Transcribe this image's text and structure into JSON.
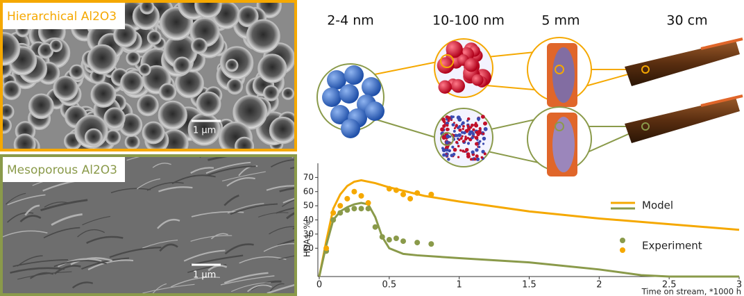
{
  "images": [
    {
      "label": "Hierarchical Al2O3",
      "scale_bar": "1 μm"
    },
    {
      "label": "Mesoporous Al2O3",
      "scale_bar": "1 μm"
    }
  ],
  "diagram": {
    "scales": [
      "2-4 nm",
      "10-100 nm",
      "5 mm",
      "30 cm"
    ]
  },
  "chart_data": {
    "type": "line",
    "y_label": "HDAs, %",
    "x_label": "Time on stream, *1000 h",
    "xlim": [
      0,
      3
    ],
    "xticks": [
      0,
      0.5,
      1,
      1.5,
      2,
      2.5,
      3
    ],
    "ylim": [
      0,
      80
    ],
    "yticks": [
      20,
      30,
      40,
      50,
      60,
      70
    ],
    "series": [
      {
        "name": "Model",
        "color": "#f5a800",
        "style": "line",
        "x": [
          0,
          0.05,
          0.1,
          0.15,
          0.2,
          0.25,
          0.3,
          0.4,
          0.5,
          0.75,
          1,
          1.5,
          2,
          2.5,
          3
        ],
        "values": [
          0,
          25,
          48,
          58,
          64,
          67,
          68,
          66,
          63,
          57,
          53,
          46,
          41,
          37,
          33
        ]
      },
      {
        "name": "Model",
        "color": "#8a9a4a",
        "style": "line",
        "x": [
          0,
          0.05,
          0.1,
          0.15,
          0.2,
          0.25,
          0.3,
          0.35,
          0.4,
          0.45,
          0.5,
          0.6,
          0.7,
          1,
          1.5,
          2,
          2.3,
          2.5,
          3
        ],
        "values": [
          0,
          22,
          40,
          46,
          49,
          51,
          52,
          51,
          42,
          28,
          20,
          16,
          15,
          13,
          10,
          5,
          1,
          0,
          0
        ]
      },
      {
        "name": "Experiment",
        "color": "#8a9a4a",
        "style": "points",
        "x": [
          0.05,
          0.1,
          0.15,
          0.2,
          0.25,
          0.3,
          0.35,
          0.4,
          0.45,
          0.5,
          0.55,
          0.6,
          0.7,
          0.8
        ],
        "values": [
          18,
          40,
          45,
          47,
          48,
          48,
          48,
          35,
          28,
          26,
          27,
          25,
          24,
          23
        ]
      },
      {
        "name": "Experiment",
        "color": "#f5a800",
        "style": "points",
        "x": [
          0.05,
          0.1,
          0.15,
          0.2,
          0.25,
          0.3,
          0.35,
          0.5,
          0.55,
          0.6,
          0.65,
          0.7,
          0.8
        ],
        "values": [
          20,
          45,
          50,
          55,
          60,
          57,
          52,
          62,
          61,
          58,
          55,
          59,
          58
        ]
      }
    ]
  }
}
